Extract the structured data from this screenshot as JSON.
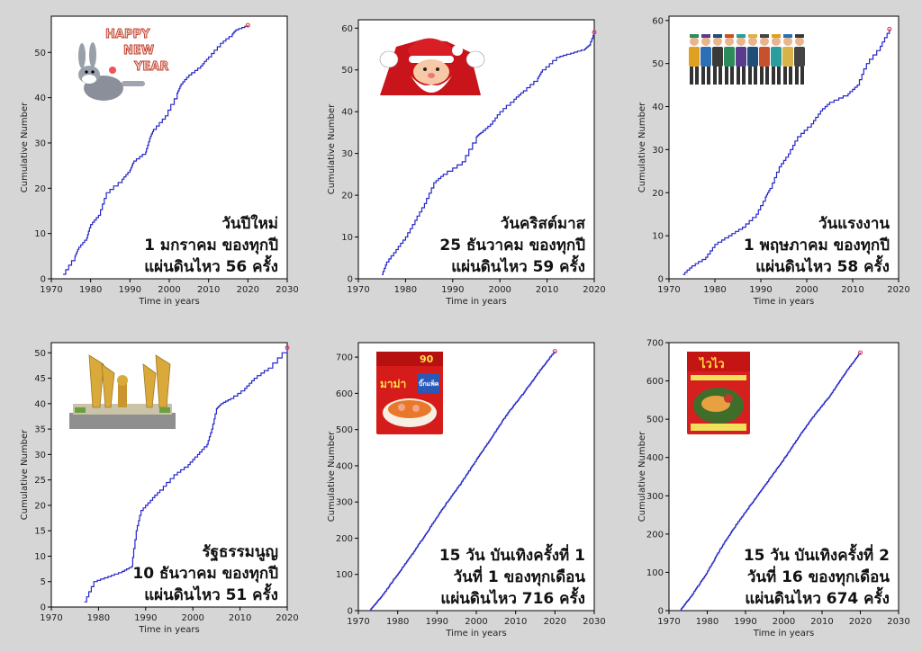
{
  "chart_data": [
    {
      "type": "line",
      "xlabel": "Time in years",
      "ylabel": "Cumulative Number",
      "xlim": [
        1970,
        2030
      ],
      "ylim": [
        0,
        58
      ],
      "xticks": [
        1970,
        1980,
        1990,
        2000,
        2010,
        2020,
        2030
      ],
      "yticks": [
        0,
        10,
        20,
        30,
        40,
        50
      ],
      "x": [
        1973,
        1976,
        1977,
        1979,
        1980,
        1982,
        1984,
        1988,
        1990,
        1991,
        1994,
        1995,
        1996,
        1999,
        2002,
        2003,
        2005,
        2008,
        2010,
        2013,
        2016,
        2017,
        2020
      ],
      "y": [
        1,
        5,
        7,
        9,
        12,
        14,
        19,
        22,
        24,
        26,
        28,
        31,
        33,
        36,
        41,
        43,
        45,
        47,
        49,
        52,
        54,
        55,
        56
      ],
      "annotation": [
        "วันปีใหม่",
        "1 มกราคม ของทุกปี",
        "แผ่นดินไหว 56 ครั้ง"
      ],
      "picture": "happy-new-year-bunny",
      "picture_text": "HAPPY NEW YEAR"
    },
    {
      "type": "line",
      "xlabel": "Time in years",
      "ylabel": "Cumulative Number",
      "xlim": [
        1970,
        2020
      ],
      "ylim": [
        0,
        62
      ],
      "xticks": [
        1970,
        1980,
        1990,
        2000,
        2010,
        2020
      ],
      "yticks": [
        0,
        10,
        20,
        30,
        40,
        50,
        60
      ],
      "x": [
        1975,
        1976,
        1978,
        1980,
        1982,
        1984,
        1986,
        1988,
        1992,
        1995,
        1996,
        1998,
        2000,
        2003,
        2005,
        2008,
        2009,
        2012,
        2015,
        2018,
        2019,
        2020
      ],
      "y": [
        1,
        4,
        7,
        10,
        14,
        18,
        23,
        25,
        28,
        34,
        35,
        37,
        40,
        43,
        45,
        48,
        50,
        53,
        54,
        55,
        56,
        59
      ],
      "annotation": [
        "วันคริสต์มาส",
        "25 ธันวาคม ของทุกปี",
        "แผ่นดินไหว 59 ครั้ง"
      ],
      "picture": "santa-claus"
    },
    {
      "type": "line",
      "xlabel": "Time in years",
      "ylabel": "Cumulative Number",
      "xlim": [
        1970,
        2020
      ],
      "ylim": [
        0,
        61
      ],
      "xticks": [
        1970,
        1980,
        1990,
        2000,
        2010,
        2020
      ],
      "yticks": [
        0,
        10,
        20,
        30,
        40,
        50,
        60
      ],
      "x": [
        1973,
        1975,
        1978,
        1980,
        1983,
        1986,
        1989,
        1991,
        1992,
        1994,
        1996,
        1998,
        2001,
        2003,
        2005,
        2009,
        2011,
        2013,
        2016,
        2018
      ],
      "y": [
        1,
        3,
        5,
        8,
        10,
        12,
        15,
        19,
        21,
        26,
        29,
        33,
        36,
        39,
        41,
        43,
        45,
        50,
        54,
        58
      ],
      "annotation": [
        "วันแรงงาน",
        "1 พฤษภาคม ของทุกปี",
        "แผ่นดินไหว 58 ครั้ง"
      ],
      "picture": "workers-group"
    },
    {
      "type": "line",
      "xlabel": "Time in years",
      "ylabel": "Cumulative Number",
      "xlim": [
        1970,
        2020
      ],
      "ylim": [
        0,
        52
      ],
      "xticks": [
        1970,
        1980,
        1990,
        2000,
        2010,
        2020
      ],
      "yticks": [
        0,
        5,
        10,
        15,
        20,
        25,
        30,
        35,
        40,
        45,
        50
      ],
      "x": [
        1977,
        1979,
        1982,
        1985,
        1987,
        1988,
        1989,
        1991,
        1993,
        1996,
        1999,
        2001,
        2003,
        2004,
        2005,
        2006,
        2008,
        2011,
        2013,
        2016,
        2020
      ],
      "y": [
        1,
        5,
        6,
        7,
        8,
        15,
        19,
        21,
        23,
        26,
        28,
        30,
        32,
        35,
        39,
        40,
        41,
        43,
        45,
        47,
        51
      ],
      "annotation": [
        "รัฐธรรมนูญ",
        "10 ธันวาคม ของทุกปี",
        "แผ่นดินไหว 51 ครั้ง"
      ],
      "picture": "democracy-monument"
    },
    {
      "type": "line",
      "xlabel": "Time in years",
      "ylabel": "Cumulative Number",
      "xlim": [
        1970,
        2030
      ],
      "ylim": [
        0,
        740
      ],
      "xticks": [
        1970,
        1980,
        1990,
        2000,
        2010,
        2020,
        2030
      ],
      "yticks": [
        0,
        100,
        200,
        300,
        400,
        500,
        600,
        700
      ],
      "x": [
        1973,
        1976,
        1980,
        1984,
        1988,
        1992,
        1996,
        2000,
        2004,
        2008,
        2012,
        2016,
        2020
      ],
      "y": [
        1,
        40,
        100,
        160,
        225,
        290,
        350,
        415,
        480,
        545,
        600,
        660,
        716
      ],
      "annotation": [
        "15 วัน บันเทิงครั้งที่ 1",
        "วันที่ 1 ของทุกเดือน",
        "แผ่นดินไหว 716 ครั้ง"
      ],
      "picture": "instant-noodle-pack",
      "picture_text": [
        "90",
        "มาม่า",
        "บิ๊กแพ็ค"
      ]
    },
    {
      "type": "line",
      "xlabel": "Time in years",
      "ylabel": "Cumulative Number",
      "xlim": [
        1970,
        2030
      ],
      "ylim": [
        0,
        700
      ],
      "xticks": [
        1970,
        1980,
        1990,
        2000,
        2010,
        2020,
        2030
      ],
      "yticks": [
        0,
        100,
        200,
        300,
        400,
        500,
        600,
        700
      ],
      "x": [
        1973,
        1976,
        1980,
        1984,
        1988,
        1992,
        1996,
        2000,
        2004,
        2008,
        2012,
        2016,
        2020
      ],
      "y": [
        1,
        40,
        100,
        170,
        230,
        285,
        340,
        395,
        455,
        510,
        560,
        620,
        674
      ],
      "annotation": [
        "15 วัน บันเทิงครั้งที่ 2",
        "วันที่ 16 ของทุกเดือน",
        "แผ่นดินไหว 674 ครั้ง"
      ],
      "picture": "wai-wai-noodle-pack",
      "picture_text": "ไวไว"
    }
  ],
  "colors": {
    "line": "#2626c8",
    "end_marker": "#e0303c",
    "background": "#d6d6d6",
    "plot_area": "#ffffff"
  }
}
